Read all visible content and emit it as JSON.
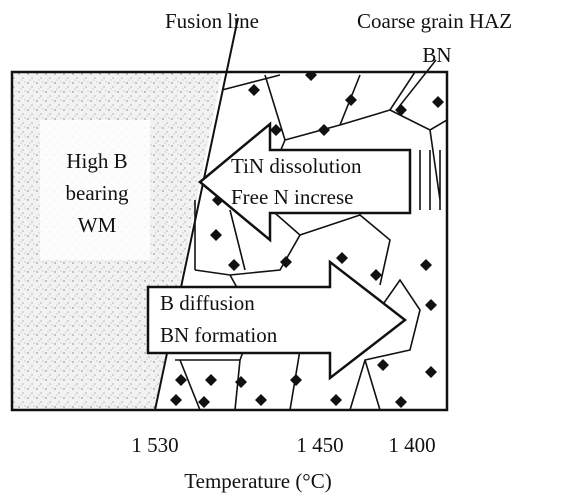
{
  "header": {
    "fusion_line": "Fusion line",
    "haz": "Coarse grain HAZ",
    "bn": "BN"
  },
  "weld_metal": [
    "High B",
    "bearing",
    "WM"
  ],
  "arrows": [
    {
      "lines": [
        "TiN dissolution",
        "Free N increse"
      ]
    },
    {
      "lines": [
        "B diffusion",
        "BN formation"
      ]
    }
  ],
  "axis": {
    "ticks": [
      "1 530",
      "1 450",
      "1 400"
    ],
    "label": "Temperature (°C)"
  }
}
